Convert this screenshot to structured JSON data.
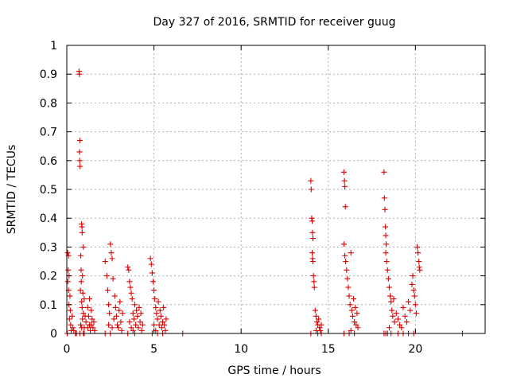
{
  "chart_data": {
    "type": "scatter",
    "title": "Day 327 of 2016, SRMTID for receiver guug",
    "xlabel": "GPS time / hours",
    "ylabel": "SRMTID / TECUs",
    "xlim": [
      0,
      24
    ],
    "ylim": [
      0,
      1
    ],
    "x_ticks": [
      0,
      5,
      10,
      15,
      20
    ],
    "y_ticks": [
      0,
      0.1,
      0.2,
      0.3,
      0.4,
      0.5,
      0.6,
      0.7,
      0.8,
      0.9,
      1
    ],
    "x_tick_labels": [
      "0",
      "5",
      "10",
      "15",
      "20"
    ],
    "y_tick_labels": [
      "0",
      "0.1",
      "0.2",
      "0.3",
      "0.4",
      "0.5",
      "0.6",
      "0.7",
      "0.8",
      "0.9",
      "1"
    ],
    "grid": true,
    "marker": "+",
    "color": "#dd0000",
    "series": [
      {
        "name": "SRMTID",
        "points": [
          [
            0.05,
            0.28
          ],
          [
            0.08,
            0.22
          ],
          [
            0.1,
            0.15
          ],
          [
            0.12,
            0.1
          ],
          [
            0.15,
            0.05
          ],
          [
            0.18,
            0.13
          ],
          [
            0.2,
            0.08
          ],
          [
            0.22,
            0.03
          ],
          [
            0.25,
            0.01
          ],
          [
            0.3,
            0.06
          ],
          [
            0.35,
            0.02
          ],
          [
            0.4,
            0.01
          ],
          [
            0.1,
            0.27
          ],
          [
            0.13,
            0.2
          ],
          [
            0.06,
            0.18
          ],
          [
            0.02,
            0.0
          ],
          [
            0.5,
            0.0
          ],
          [
            0.55,
            0.0
          ],
          [
            0.7,
            0.91
          ],
          [
            0.72,
            0.9
          ],
          [
            0.75,
            0.67
          ],
          [
            0.73,
            0.63
          ],
          [
            0.74,
            0.6
          ],
          [
            0.76,
            0.58
          ],
          [
            0.85,
            0.38
          ],
          [
            0.87,
            0.37
          ],
          [
            0.88,
            0.35
          ],
          [
            0.95,
            0.3
          ],
          [
            0.8,
            0.27
          ],
          [
            0.82,
            0.22
          ],
          [
            0.83,
            0.18
          ],
          [
            0.78,
            0.15
          ],
          [
            0.9,
            0.2
          ],
          [
            0.92,
            0.14
          ],
          [
            0.85,
            0.11
          ],
          [
            0.88,
            0.09
          ],
          [
            0.95,
            0.07
          ],
          [
            1.0,
            0.12
          ],
          [
            1.05,
            0.06
          ],
          [
            1.1,
            0.04
          ],
          [
            0.9,
            0.05
          ],
          [
            0.8,
            0.03
          ],
          [
            0.85,
            0.02
          ],
          [
            1.0,
            0.02
          ],
          [
            0.75,
            0.0
          ],
          [
            0.95,
            0.0
          ],
          [
            1.0,
            0.0
          ],
          [
            1.2,
            0.09
          ],
          [
            1.25,
            0.06
          ],
          [
            1.3,
            0.03
          ],
          [
            1.35,
            0.01
          ],
          [
            1.4,
            0.08
          ],
          [
            1.45,
            0.05
          ],
          [
            1.5,
            0.02
          ],
          [
            1.55,
            0.04
          ],
          [
            1.6,
            0.01
          ],
          [
            1.3,
            0.12
          ],
          [
            1.2,
            0.02
          ],
          [
            1.4,
            0.03
          ],
          [
            2.2,
            0.25
          ],
          [
            2.3,
            0.2
          ],
          [
            2.35,
            0.15
          ],
          [
            2.4,
            0.1
          ],
          [
            2.45,
            0.07
          ],
          [
            2.5,
            0.31
          ],
          [
            2.55,
            0.28
          ],
          [
            2.6,
            0.26
          ],
          [
            2.65,
            0.19
          ],
          [
            2.7,
            0.05
          ],
          [
            2.75,
            0.13
          ],
          [
            2.8,
            0.09
          ],
          [
            2.85,
            0.06
          ],
          [
            2.9,
            0.03
          ],
          [
            2.95,
            0.02
          ],
          [
            3.0,
            0.08
          ],
          [
            3.05,
            0.11
          ],
          [
            3.1,
            0.04
          ],
          [
            3.15,
            0.01
          ],
          [
            3.2,
            0.07
          ],
          [
            2.4,
            0.03
          ],
          [
            2.6,
            0.02
          ],
          [
            2.5,
            0.0
          ],
          [
            2.2,
            0.0
          ],
          [
            3.5,
            0.23
          ],
          [
            3.55,
            0.22
          ],
          [
            3.6,
            0.18
          ],
          [
            3.65,
            0.16
          ],
          [
            3.7,
            0.14
          ],
          [
            3.75,
            0.12
          ],
          [
            3.8,
            0.07
          ],
          [
            3.85,
            0.05
          ],
          [
            3.9,
            0.1
          ],
          [
            3.95,
            0.03
          ],
          [
            4.0,
            0.08
          ],
          [
            4.05,
            0.06
          ],
          [
            4.1,
            0.02
          ],
          [
            4.15,
            0.09
          ],
          [
            4.2,
            0.04
          ],
          [
            4.25,
            0.07
          ],
          [
            4.3,
            0.01
          ],
          [
            4.35,
            0.03
          ],
          [
            3.6,
            0.04
          ],
          [
            3.7,
            0.02
          ],
          [
            3.8,
            0.01
          ],
          [
            3.5,
            0.0
          ],
          [
            3.9,
            0.0
          ],
          [
            4.8,
            0.26
          ],
          [
            4.85,
            0.24
          ],
          [
            4.9,
            0.21
          ],
          [
            4.95,
            0.18
          ],
          [
            5.0,
            0.15
          ],
          [
            5.05,
            0.12
          ],
          [
            5.1,
            0.09
          ],
          [
            5.15,
            0.07
          ],
          [
            5.2,
            0.05
          ],
          [
            5.25,
            0.11
          ],
          [
            5.3,
            0.03
          ],
          [
            5.35,
            0.08
          ],
          [
            5.4,
            0.06
          ],
          [
            5.45,
            0.02
          ],
          [
            5.5,
            0.04
          ],
          [
            5.55,
            0.09
          ],
          [
            5.6,
            0.03
          ],
          [
            5.65,
            0.01
          ],
          [
            5.7,
            0.05
          ],
          [
            5.0,
            0.03
          ],
          [
            5.1,
            0.01
          ],
          [
            4.9,
            0.0
          ],
          [
            5.2,
            0.0
          ],
          [
            5.5,
            0.0
          ],
          [
            6.65,
            0.0
          ],
          [
            14.0,
            0.53
          ],
          [
            14.02,
            0.5
          ],
          [
            14.05,
            0.4
          ],
          [
            14.08,
            0.39
          ],
          [
            14.1,
            0.35
          ],
          [
            14.12,
            0.33
          ],
          [
            14.08,
            0.28
          ],
          [
            14.1,
            0.26
          ],
          [
            14.12,
            0.25
          ],
          [
            14.15,
            0.2
          ],
          [
            14.18,
            0.18
          ],
          [
            14.2,
            0.16
          ],
          [
            14.25,
            0.08
          ],
          [
            14.3,
            0.06
          ],
          [
            14.35,
            0.04
          ],
          [
            14.4,
            0.03
          ],
          [
            14.45,
            0.05
          ],
          [
            14.5,
            0.02
          ],
          [
            14.55,
            0.01
          ],
          [
            14.6,
            0.03
          ],
          [
            14.3,
            0.01
          ],
          [
            14.0,
            0.0
          ],
          [
            14.4,
            0.0
          ],
          [
            14.6,
            0.0
          ],
          [
            15.9,
            0.56
          ],
          [
            15.93,
            0.53
          ],
          [
            15.95,
            0.51
          ],
          [
            15.98,
            0.44
          ],
          [
            15.9,
            0.31
          ],
          [
            15.95,
            0.27
          ],
          [
            16.0,
            0.25
          ],
          [
            16.05,
            0.22
          ],
          [
            16.1,
            0.19
          ],
          [
            16.15,
            0.16
          ],
          [
            16.2,
            0.13
          ],
          [
            16.25,
            0.1
          ],
          [
            16.3,
            0.28
          ],
          [
            16.35,
            0.08
          ],
          [
            16.4,
            0.06
          ],
          [
            16.45,
            0.12
          ],
          [
            16.5,
            0.04
          ],
          [
            16.55,
            0.09
          ],
          [
            16.6,
            0.03
          ],
          [
            16.65,
            0.07
          ],
          [
            16.7,
            0.02
          ],
          [
            16.3,
            0.01
          ],
          [
            15.9,
            0.0
          ],
          [
            16.2,
            0.0
          ],
          [
            16.5,
            0.0
          ],
          [
            18.2,
            0.56
          ],
          [
            18.22,
            0.47
          ],
          [
            18.25,
            0.43
          ],
          [
            18.28,
            0.37
          ],
          [
            18.3,
            0.34
          ],
          [
            18.32,
            0.31
          ],
          [
            18.3,
            0.28
          ],
          [
            18.35,
            0.25
          ],
          [
            18.4,
            0.22
          ],
          [
            18.45,
            0.19
          ],
          [
            18.5,
            0.16
          ],
          [
            18.55,
            0.13
          ],
          [
            18.6,
            0.11
          ],
          [
            18.65,
            0.08
          ],
          [
            18.7,
            0.06
          ],
          [
            18.75,
            0.12
          ],
          [
            18.8,
            0.04
          ],
          [
            18.5,
            0.02
          ],
          [
            18.2,
            0.0
          ],
          [
            18.3,
            0.0
          ],
          [
            18.4,
            0.0
          ],
          [
            18.6,
            0.0
          ],
          [
            18.9,
            0.07
          ],
          [
            19.0,
            0.05
          ],
          [
            19.1,
            0.03
          ],
          [
            19.2,
            0.02
          ],
          [
            19.3,
            0.09
          ],
          [
            19.4,
            0.06
          ],
          [
            19.5,
            0.04
          ],
          [
            19.6,
            0.11
          ],
          [
            19.7,
            0.08
          ],
          [
            19.8,
            0.17
          ],
          [
            19.85,
            0.2
          ],
          [
            19.9,
            0.15
          ],
          [
            19.95,
            0.13
          ],
          [
            20.0,
            0.1
          ],
          [
            20.05,
            0.07
          ],
          [
            20.1,
            0.3
          ],
          [
            20.15,
            0.28
          ],
          [
            20.2,
            0.25
          ],
          [
            20.22,
            0.23
          ],
          [
            20.25,
            0.22
          ],
          [
            19.0,
            0.0
          ],
          [
            19.3,
            0.0
          ],
          [
            19.6,
            0.0
          ],
          [
            19.9,
            0.0
          ],
          [
            22.7,
            0.0
          ]
        ]
      }
    ]
  }
}
